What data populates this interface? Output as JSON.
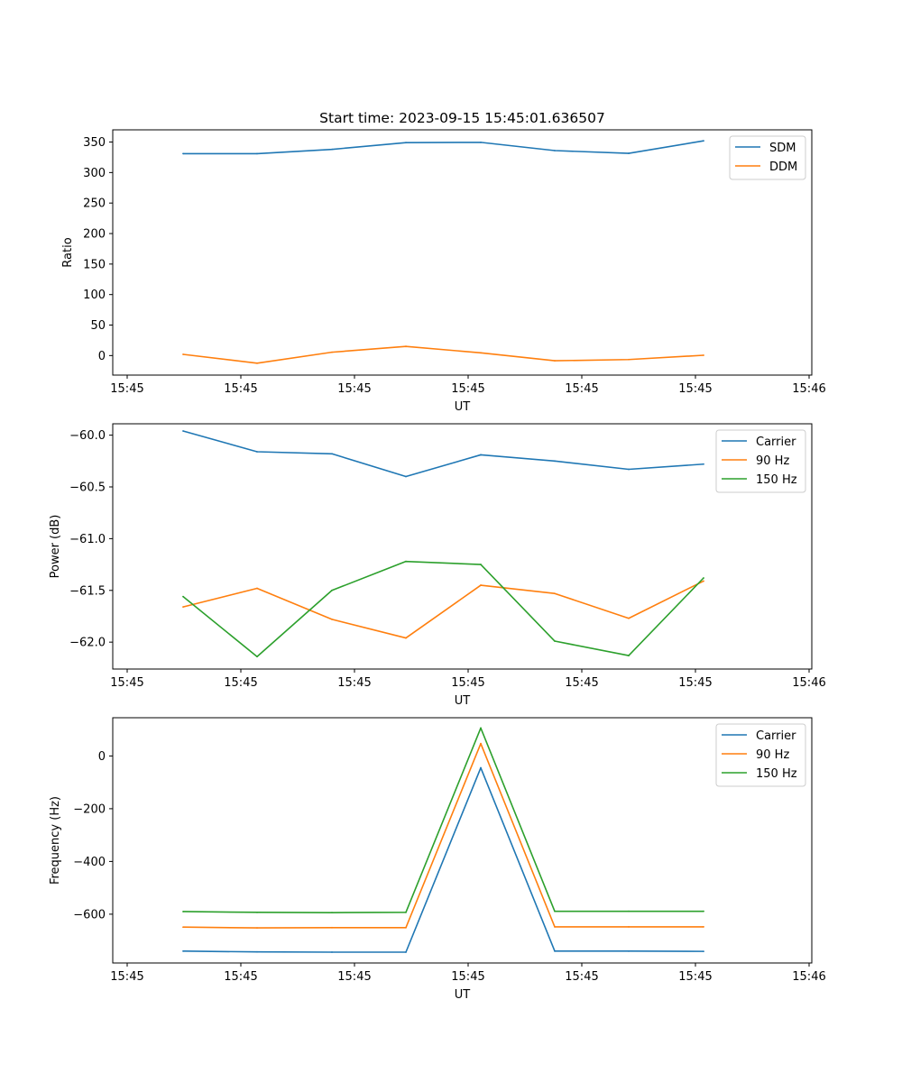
{
  "figure_title": "Start time: 2023-09-15 15:45:01.636507",
  "chart_data": [
    {
      "type": "line",
      "title": "Start time: 2023-09-15 15:45:01.636507",
      "xlabel": "UT",
      "ylabel": "Ratio",
      "x_tick_labels": [
        "15:45",
        "15:45",
        "15:45",
        "15:45",
        "15:45",
        "15:45",
        "15:45"
      ],
      "x_last_tick_label": "15:46",
      "ylim": [
        -32,
        370
      ],
      "y_ticks": [
        0,
        50,
        100,
        150,
        200,
        250,
        300,
        350
      ],
      "legend_position": "top-right",
      "series": [
        {
          "name": "SDM",
          "color": "#1f77b4",
          "values": [
            331,
            331,
            338,
            349,
            349.5,
            336,
            331.5,
            352
          ]
        },
        {
          "name": "DDM",
          "color": "#ff7f0e",
          "values": [
            2,
            -12.5,
            5.5,
            15,
            4.5,
            -8.5,
            -6.5,
            0.5
          ]
        }
      ]
    },
    {
      "type": "line",
      "xlabel": "UT",
      "ylabel": "Power (dB)",
      "x_tick_labels": [
        "15:45",
        "15:45",
        "15:45",
        "15:45",
        "15:45",
        "15:45",
        "15:45"
      ],
      "x_last_tick_label": "15:46",
      "ylim": [
        -62.26,
        -59.89
      ],
      "y_ticks": [
        -62.0,
        -61.5,
        -61.0,
        -60.5,
        -60.0
      ],
      "legend_position": "top-right",
      "series": [
        {
          "name": "Carrier",
          "color": "#1f77b4",
          "values": [
            -59.96,
            -60.16,
            -60.18,
            -60.4,
            -60.19,
            -60.25,
            -60.33,
            -60.28
          ]
        },
        {
          "name": "90 Hz",
          "color": "#ff7f0e",
          "values": [
            -61.66,
            -61.48,
            -61.78,
            -61.96,
            -61.45,
            -61.53,
            -61.77,
            -61.41
          ]
        },
        {
          "name": "150 Hz",
          "color": "#2ca02c",
          "values": [
            -61.56,
            -62.14,
            -61.5,
            -61.22,
            -61.25,
            -61.99,
            -62.13,
            -61.38
          ]
        }
      ]
    },
    {
      "type": "line",
      "xlabel": "UT",
      "ylabel": "Frequency (Hz)",
      "x_tick_labels": [
        "15:45",
        "15:45",
        "15:45",
        "15:45",
        "15:45",
        "15:45",
        "15:45"
      ],
      "x_last_tick_label": "15:46",
      "ylim": [
        -785,
        145
      ],
      "y_ticks": [
        -600,
        -400,
        -200,
        0
      ],
      "legend_position": "top-right",
      "series": [
        {
          "name": "Carrier",
          "color": "#1f77b4",
          "values": [
            -740,
            -743,
            -744,
            -744,
            -45,
            -740,
            -740,
            -741
          ]
        },
        {
          "name": "90 Hz",
          "color": "#ff7f0e",
          "values": [
            -649,
            -652,
            -651,
            -651,
            47,
            -648,
            -648,
            -648
          ]
        },
        {
          "name": "150 Hz",
          "color": "#2ca02c",
          "values": [
            -590,
            -593,
            -594,
            -593,
            106,
            -589,
            -589,
            -589
          ]
        }
      ]
    }
  ]
}
